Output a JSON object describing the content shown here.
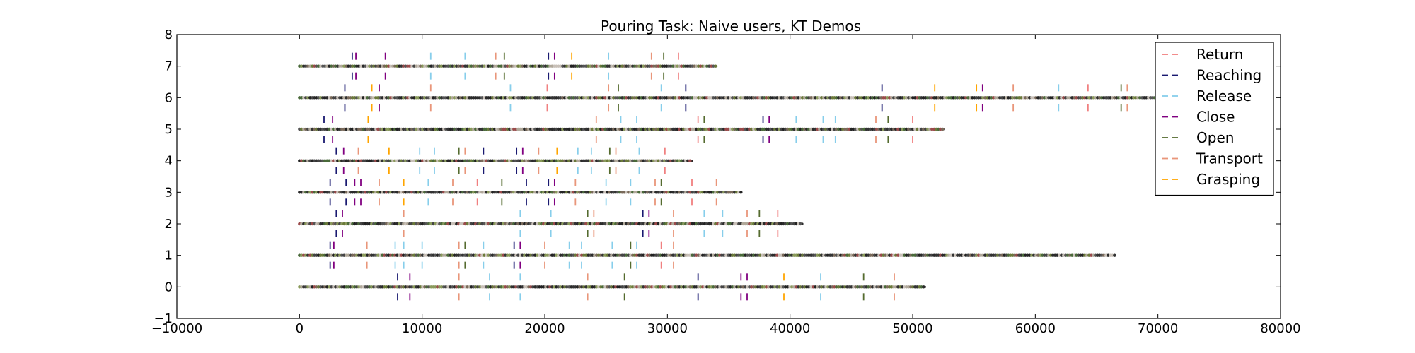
{
  "chart_data": {
    "type": "scatter",
    "title": "Pouring Task: Naive users, KT Demos",
    "xlabel": "",
    "ylabel": "",
    "xlim": [
      -10000,
      80000
    ],
    "ylim": [
      -1,
      8
    ],
    "x_ticks": [
      "−10000",
      "0",
      "10000",
      "20000",
      "30000",
      "40000",
      "50000",
      "60000",
      "70000",
      "80000"
    ],
    "y_ticks": [
      "−1",
      "0",
      "1",
      "2",
      "3",
      "4",
      "5",
      "6",
      "7",
      "8"
    ],
    "grid": false,
    "legend_position": "top-right",
    "legend": [
      {
        "name": "Return",
        "color": "#f08080"
      },
      {
        "name": "Reaching",
        "color": "#191970"
      },
      {
        "name": "Release",
        "color": "#87ceeb"
      },
      {
        "name": "Close",
        "color": "#800080"
      },
      {
        "name": "Open",
        "color": "#556b2f"
      },
      {
        "name": "Transport",
        "color": "#e9967a"
      },
      {
        "name": "Grasping",
        "color": "#ffa500"
      }
    ],
    "demos": [
      {
        "y": 0,
        "x_end": 51000,
        "segments": [
          {
            "x": 8000,
            "label": "Reaching"
          },
          {
            "x": 9000,
            "label": "Close"
          },
          {
            "x": 13000,
            "label": "Transport"
          },
          {
            "x": 15500,
            "label": "Release"
          },
          {
            "x": 18000,
            "label": "Release"
          },
          {
            "x": 23500,
            "label": "Transport"
          },
          {
            "x": 26500,
            "label": "Open"
          },
          {
            "x": 32500,
            "label": "Reaching"
          },
          {
            "x": 36000,
            "label": "Close"
          },
          {
            "x": 36500,
            "label": "Close"
          },
          {
            "x": 39500,
            "label": "Grasping"
          },
          {
            "x": 42500,
            "label": "Release"
          },
          {
            "x": 46000,
            "label": "Open"
          },
          {
            "x": 48500,
            "label": "Transport"
          }
        ]
      },
      {
        "y": 1,
        "x_end": 66500,
        "segments": [
          {
            "x": 2500,
            "label": "Reaching"
          },
          {
            "x": 2800,
            "label": "Close"
          },
          {
            "x": 5500,
            "label": "Transport"
          },
          {
            "x": 7800,
            "label": "Release"
          },
          {
            "x": 8500,
            "label": "Release"
          },
          {
            "x": 10000,
            "label": "Release"
          },
          {
            "x": 13000,
            "label": "Transport"
          },
          {
            "x": 13500,
            "label": "Open"
          },
          {
            "x": 15000,
            "label": "Release"
          },
          {
            "x": 17500,
            "label": "Reaching"
          },
          {
            "x": 18000,
            "label": "Close"
          },
          {
            "x": 20000,
            "label": "Transport"
          },
          {
            "x": 22000,
            "label": "Release"
          },
          {
            "x": 23000,
            "label": "Release"
          },
          {
            "x": 25500,
            "label": "Release"
          },
          {
            "x": 27000,
            "label": "Open"
          },
          {
            "x": 27500,
            "label": "Release"
          },
          {
            "x": 29500,
            "label": "Return"
          },
          {
            "x": 30500,
            "label": "Transport"
          }
        ]
      },
      {
        "y": 2,
        "x_end": 41000,
        "segments": [
          {
            "x": 3000,
            "label": "Reaching"
          },
          {
            "x": 3500,
            "label": "Close"
          },
          {
            "x": 8500,
            "label": "Transport"
          },
          {
            "x": 18000,
            "label": "Release"
          },
          {
            "x": 20500,
            "label": "Release"
          },
          {
            "x": 23500,
            "label": "Open"
          },
          {
            "x": 24000,
            "label": "Transport"
          },
          {
            "x": 28000,
            "label": "Reaching"
          },
          {
            "x": 28500,
            "label": "Close"
          },
          {
            "x": 30500,
            "label": "Transport"
          },
          {
            "x": 33000,
            "label": "Release"
          },
          {
            "x": 34500,
            "label": "Release"
          },
          {
            "x": 36500,
            "label": "Transport"
          },
          {
            "x": 37500,
            "label": "Open"
          },
          {
            "x": 39000,
            "label": "Return"
          }
        ]
      },
      {
        "y": 3,
        "x_end": 36000,
        "segments": [
          {
            "x": 2500,
            "label": "Reaching"
          },
          {
            "x": 3800,
            "label": "Reaching"
          },
          {
            "x": 4500,
            "label": "Close"
          },
          {
            "x": 5000,
            "label": "Close"
          },
          {
            "x": 6500,
            "label": "Transport"
          },
          {
            "x": 8500,
            "label": "Grasping"
          },
          {
            "x": 10500,
            "label": "Release"
          },
          {
            "x": 12500,
            "label": "Transport"
          },
          {
            "x": 14500,
            "label": "Return"
          },
          {
            "x": 16500,
            "label": "Open"
          },
          {
            "x": 18500,
            "label": "Reaching"
          },
          {
            "x": 20300,
            "label": "Reaching"
          },
          {
            "x": 20800,
            "label": "Close"
          },
          {
            "x": 22500,
            "label": "Transport"
          },
          {
            "x": 25000,
            "label": "Release"
          },
          {
            "x": 27000,
            "label": "Release"
          },
          {
            "x": 29000,
            "label": "Transport"
          },
          {
            "x": 29500,
            "label": "Open"
          },
          {
            "x": 32000,
            "label": "Return"
          },
          {
            "x": 34000,
            "label": "Transport"
          }
        ]
      },
      {
        "y": 4,
        "x_end": 32000,
        "segments": [
          {
            "x": 3000,
            "label": "Reaching"
          },
          {
            "x": 3600,
            "label": "Close"
          },
          {
            "x": 4800,
            "label": "Transport"
          },
          {
            "x": 7300,
            "label": "Grasping"
          },
          {
            "x": 9800,
            "label": "Release"
          },
          {
            "x": 11000,
            "label": "Release"
          },
          {
            "x": 13000,
            "label": "Open"
          },
          {
            "x": 13500,
            "label": "Transport"
          },
          {
            "x": 15000,
            "label": "Reaching"
          },
          {
            "x": 17700,
            "label": "Reaching"
          },
          {
            "x": 18200,
            "label": "Close"
          },
          {
            "x": 19500,
            "label": "Transport"
          },
          {
            "x": 21000,
            "label": "Grasping"
          },
          {
            "x": 22700,
            "label": "Release"
          },
          {
            "x": 23800,
            "label": "Release"
          },
          {
            "x": 25300,
            "label": "Open"
          },
          {
            "x": 25800,
            "label": "Transport"
          },
          {
            "x": 27700,
            "label": "Release"
          },
          {
            "x": 29800,
            "label": "Return"
          }
        ]
      },
      {
        "y": 5,
        "x_end": 52500,
        "segments": [
          {
            "x": 2000,
            "label": "Reaching"
          },
          {
            "x": 2700,
            "label": "Close"
          },
          {
            "x": 5600,
            "label": "Grasping"
          },
          {
            "x": 24200,
            "label": "Transport"
          },
          {
            "x": 26200,
            "label": "Release"
          },
          {
            "x": 27500,
            "label": "Release"
          },
          {
            "x": 32500,
            "label": "Return"
          },
          {
            "x": 33000,
            "label": "Open"
          },
          {
            "x": 37800,
            "label": "Reaching"
          },
          {
            "x": 38300,
            "label": "Close"
          },
          {
            "x": 40500,
            "label": "Release"
          },
          {
            "x": 42700,
            "label": "Release"
          },
          {
            "x": 43700,
            "label": "Release"
          },
          {
            "x": 47000,
            "label": "Transport"
          },
          {
            "x": 48000,
            "label": "Open"
          },
          {
            "x": 50000,
            "label": "Return"
          }
        ]
      },
      {
        "y": 6,
        "x_end": 70000,
        "segments": [
          {
            "x": 3700,
            "label": "Reaching"
          },
          {
            "x": 5900,
            "label": "Grasping"
          },
          {
            "x": 6500,
            "label": "Close"
          },
          {
            "x": 10700,
            "label": "Transport"
          },
          {
            "x": 17200,
            "label": "Release"
          },
          {
            "x": 20200,
            "label": "Return"
          },
          {
            "x": 25200,
            "label": "Transport"
          },
          {
            "x": 26000,
            "label": "Open"
          },
          {
            "x": 29500,
            "label": "Release"
          },
          {
            "x": 31500,
            "label": "Reaching"
          },
          {
            "x": 47500,
            "label": "Reaching"
          },
          {
            "x": 51800,
            "label": "Grasping"
          },
          {
            "x": 55200,
            "label": "Grasping"
          },
          {
            "x": 55700,
            "label": "Close"
          },
          {
            "x": 58200,
            "label": "Transport"
          },
          {
            "x": 61900,
            "label": "Release"
          },
          {
            "x": 64300,
            "label": "Return"
          },
          {
            "x": 67000,
            "label": "Open"
          },
          {
            "x": 67500,
            "label": "Transport"
          }
        ]
      },
      {
        "y": 7,
        "x_end": 34000,
        "segments": [
          {
            "x": 4300,
            "label": "Reaching"
          },
          {
            "x": 4600,
            "label": "Close"
          },
          {
            "x": 7000,
            "label": "Close"
          },
          {
            "x": 10700,
            "label": "Release"
          },
          {
            "x": 13500,
            "label": "Release"
          },
          {
            "x": 16000,
            "label": "Transport"
          },
          {
            "x": 16700,
            "label": "Open"
          },
          {
            "x": 20300,
            "label": "Reaching"
          },
          {
            "x": 20800,
            "label": "Close"
          },
          {
            "x": 22200,
            "label": "Grasping"
          },
          {
            "x": 25200,
            "label": "Release"
          },
          {
            "x": 28700,
            "label": "Transport"
          },
          {
            "x": 29700,
            "label": "Open"
          },
          {
            "x": 30900,
            "label": "Return"
          }
        ]
      }
    ]
  }
}
